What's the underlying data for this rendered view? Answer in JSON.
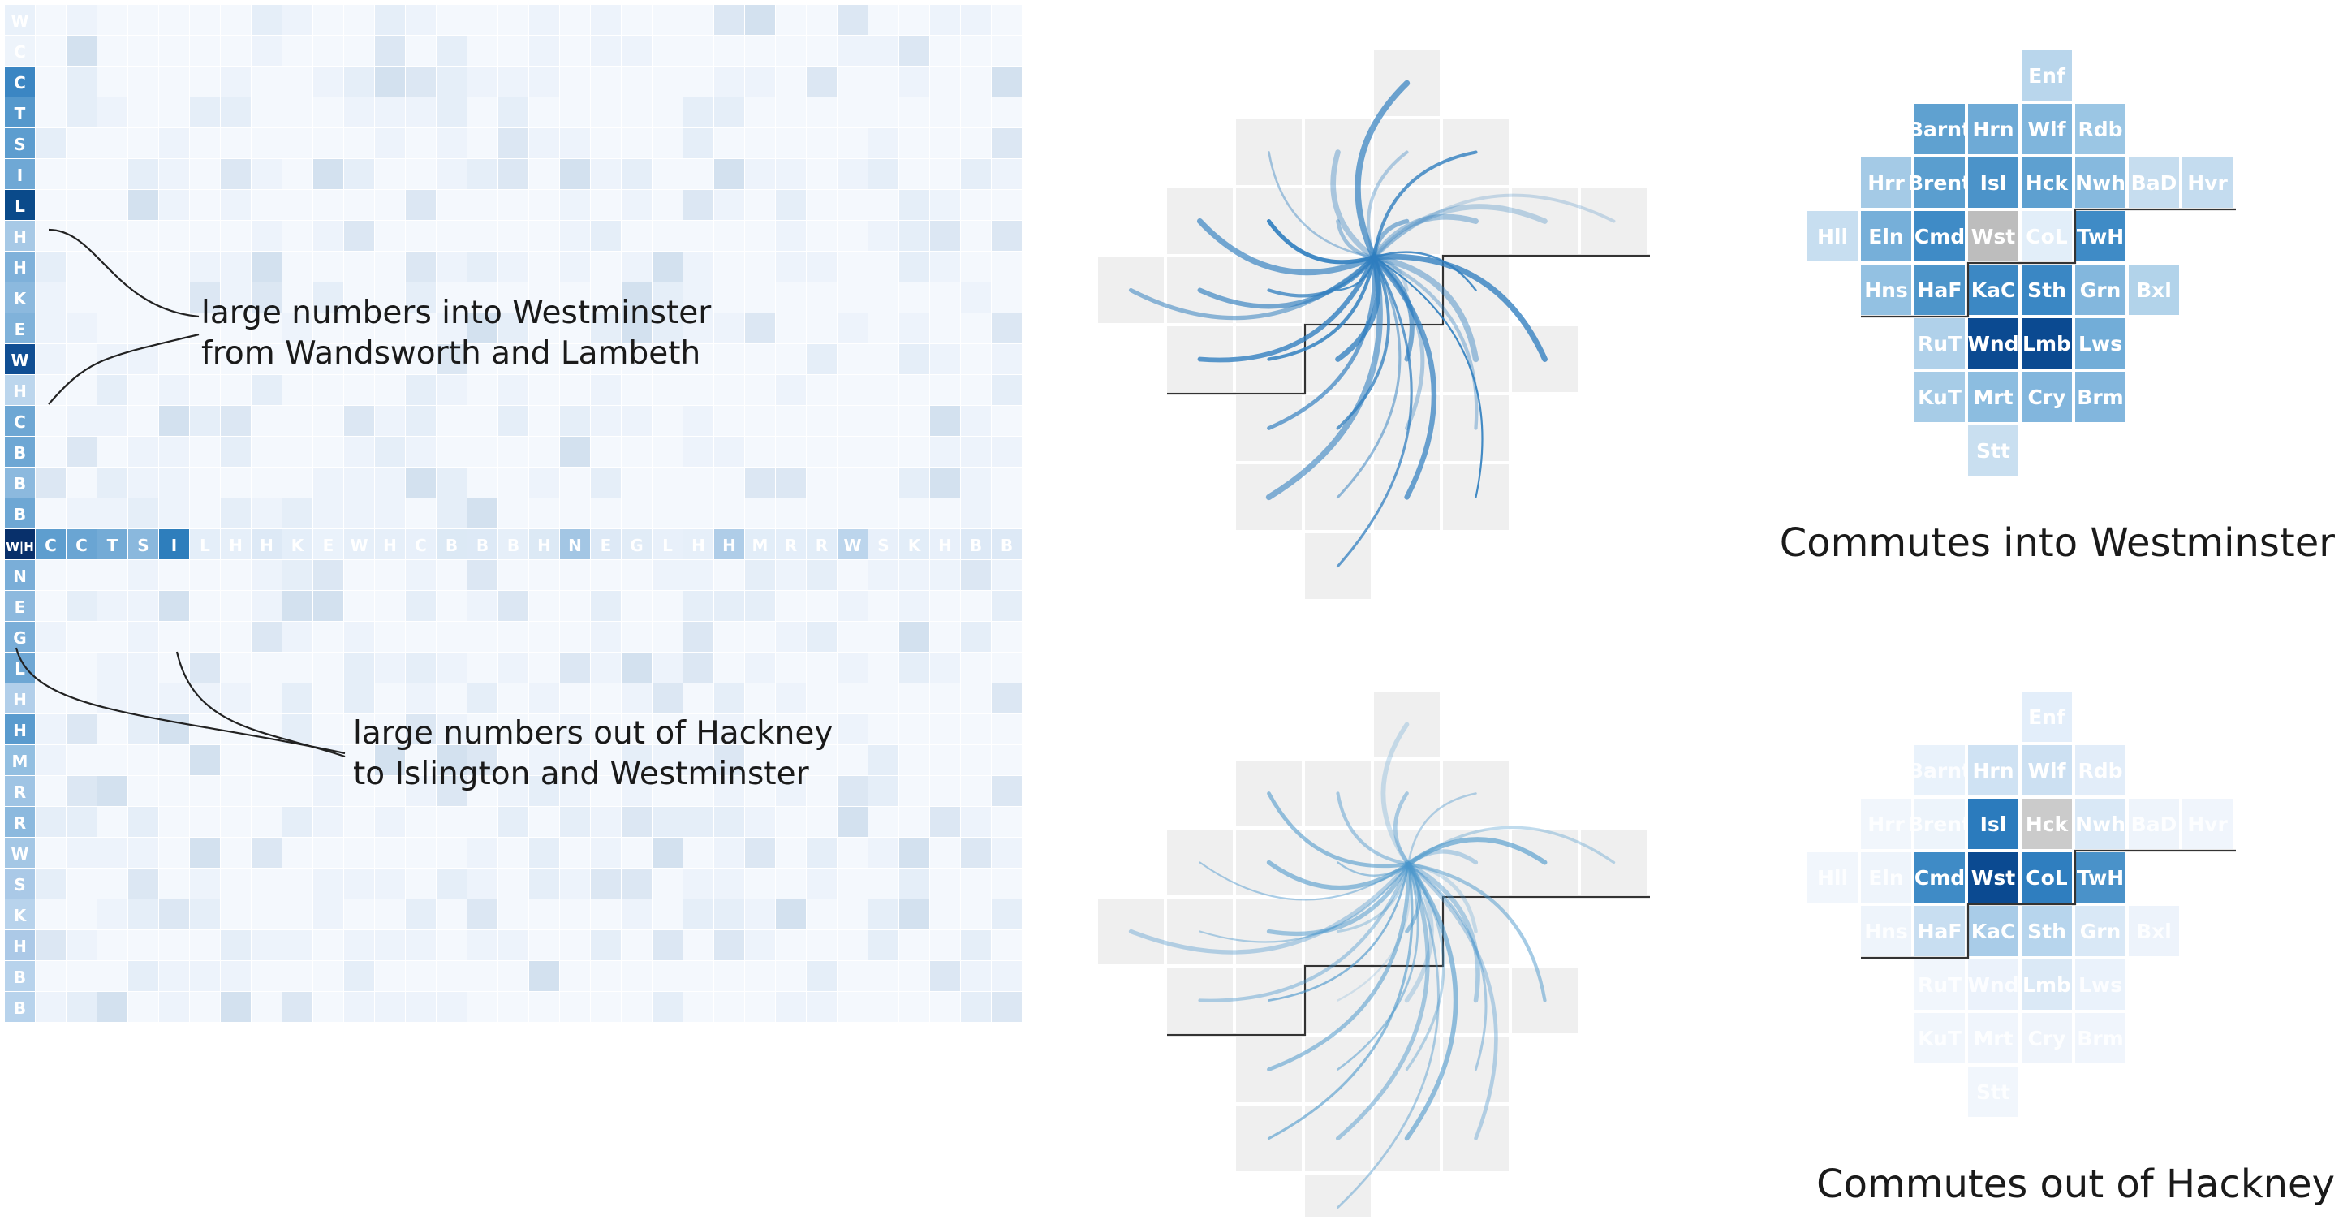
{
  "matrix": {
    "row_labels": [
      "W",
      "C",
      "C",
      "T",
      "S",
      "I",
      "L",
      "H",
      "H",
      "K",
      "E",
      "W",
      "H",
      "C",
      "B",
      "B",
      "B",
      "W|H",
      "N",
      "E",
      "G",
      "L",
      "H",
      "H",
      "M",
      "R",
      "R",
      "W",
      "S",
      "K",
      "H",
      "B",
      "B"
    ],
    "row_colors": [
      "#e9f1fa",
      "#eef4fb",
      "#3b86c3",
      "#5598cc",
      "#5d9dcf",
      "#6fa8d5",
      "#0a4a8a",
      "#a7c9e6",
      "#7fb1da",
      "#8cb9de",
      "#80b2da",
      "#104e93",
      "#bcd6ed",
      "#6ea7d4",
      "#6ea7d4",
      "#8cb9de",
      "#6ea7d4",
      "#08306b",
      "#7aaed8",
      "#8db9de",
      "#7aaed8",
      "#6ea7d4",
      "#b2cfea",
      "#5a9bce",
      "#93bfe1",
      "#9fc4e4",
      "#8cb9de",
      "#a4c7e5",
      "#aac9e7",
      "#b8d3ec",
      "#acc9e7",
      "#b8d3ec",
      "#b8d3ec"
    ],
    "row_highlight_index": 17,
    "column_labels": [
      "C",
      "C",
      "T",
      "S",
      "I",
      "L",
      "H",
      "H",
      "K",
      "E",
      "W",
      "H",
      "C",
      "B",
      "B",
      "B",
      "H",
      "N",
      "E",
      "G",
      "L",
      "H",
      "H",
      "M",
      "R",
      "R",
      "W",
      "S",
      "K",
      "H",
      "B",
      "B"
    ],
    "column_colors": [
      "#5e9ecf",
      "#6aa5d3",
      "#74abd6",
      "#8ab8dd",
      "#2e7ebc",
      "#e4eef9",
      "#e6eff9",
      "#dde9f6",
      "#e4eef9",
      "#eaf2fb",
      "#e6eff9",
      "#e6eff9",
      "#e8f0fa",
      "#dce9f5",
      "#dde9f6",
      "#e6eff9",
      "#dce9f5",
      "#a3c6e4",
      "#dde9f6",
      "#e1ecf7",
      "#e8f0fa",
      "#e6eff9",
      "#afcde8",
      "#e2edf8",
      "#e4eef9",
      "#e2edf8",
      "#bcd5ec",
      "#e8f0fa",
      "#e2edf8",
      "#e8f0fa",
      "#dde9f6",
      "#dde9f6"
    ],
    "cell_colors": [
      "#f4f8fd",
      "#edf3fb",
      "#e5eef8",
      "#dce7f3",
      "#d3e1ef",
      "#c9d8ea"
    ]
  },
  "annotations": [
    {
      "lines": [
        "large numbers into Westminster",
        "from Wandsworth and Lambeth"
      ]
    },
    {
      "lines": [
        "large numbers out of Hackney",
        "to Islington and Westminster"
      ]
    }
  ],
  "maps": [
    {
      "id": "into",
      "caption": "Commutes into Westminster",
      "tiles": [
        {
          "label": "Enf",
          "color": "#b9d6ec",
          "dim": false
        },
        {
          "label": "Barnt",
          "color": "#5fa1d0",
          "dim": false
        },
        {
          "label": "Hrn",
          "color": "#6eaad6",
          "dim": false
        },
        {
          "label": "Wlf",
          "color": "#7fb5dc",
          "dim": false
        },
        {
          "label": "Rdb",
          "color": "#9bc6e4",
          "dim": false
        },
        {
          "label": "Hrr",
          "color": "#a4cae6",
          "dim": false
        },
        {
          "label": "Brent",
          "color": "#5a9ecf",
          "dim": false
        },
        {
          "label": "Isl",
          "color": "#4b93c9",
          "dim": false
        },
        {
          "label": "Hck",
          "color": "#5ea0d0",
          "dim": false
        },
        {
          "label": "Nwh",
          "color": "#86b9de",
          "dim": false
        },
        {
          "label": "BaD",
          "color": "#c6ddef",
          "dim": false
        },
        {
          "label": "Hvr",
          "color": "#c4dcef",
          "dim": false
        },
        {
          "label": "Hll",
          "color": "#c7def0",
          "dim": false
        },
        {
          "label": "Eln",
          "color": "#76afd9",
          "dim": false
        },
        {
          "label": "Cmd",
          "color": "#3f8bc6",
          "dim": false
        },
        {
          "label": "Wst",
          "color": "#bdbdbd",
          "dim": false
        },
        {
          "label": "CoL",
          "color": "#e2eef9",
          "dim": false
        },
        {
          "label": "TwH",
          "color": "#3f8bc6",
          "dim": false
        },
        {
          "label": "Hns",
          "color": "#93c1e2",
          "dim": false
        },
        {
          "label": "HaF",
          "color": "#4d95ca",
          "dim": false
        },
        {
          "label": "KaC",
          "color": "#3c88c4",
          "dim": false
        },
        {
          "label": "Sth",
          "color": "#3a87c4",
          "dim": false
        },
        {
          "label": "Grn",
          "color": "#83b7dd",
          "dim": false
        },
        {
          "label": "Bxl",
          "color": "#b2d3ea",
          "dim": false
        },
        {
          "label": "RuT",
          "color": "#b0d1ea",
          "dim": false
        },
        {
          "label": "Wnd",
          "color": "#0b4a91",
          "dim": false
        },
        {
          "label": "Lmb",
          "color": "#0b4a91",
          "dim": false
        },
        {
          "label": "Lws",
          "color": "#72add8",
          "dim": false
        },
        {
          "label": "KuT",
          "color": "#a7cce7",
          "dim": false
        },
        {
          "label": "Mrt",
          "color": "#8cbde0",
          "dim": false
        },
        {
          "label": "Cry",
          "color": "#82b6dd",
          "dim": false
        },
        {
          "label": "Brm",
          "color": "#82b6dd",
          "dim": false
        },
        {
          "label": "Stt",
          "color": "#c9dff0",
          "dim": false
        }
      ]
    },
    {
      "id": "out",
      "caption": "Commutes out of Hackney",
      "tiles": [
        {
          "label": "Enf",
          "color": "#e3eefa",
          "dim": false
        },
        {
          "label": "Barnt",
          "color": "#e9f2fb",
          "dim": true
        },
        {
          "label": "Hrn",
          "color": "#cfe2f3",
          "dim": false
        },
        {
          "label": "Wlf",
          "color": "#cce0f2",
          "dim": false
        },
        {
          "label": "Rdb",
          "color": "#e2edf9",
          "dim": false
        },
        {
          "label": "Hrr",
          "color": "#f1f6fc",
          "dim": true
        },
        {
          "label": "Brent",
          "color": "#edf4fb",
          "dim": true
        },
        {
          "label": "Isl",
          "color": "#2b7bbd",
          "dim": false
        },
        {
          "label": "Hck",
          "color": "#cbcbcb",
          "dim": false
        },
        {
          "label": "Nwh",
          "color": "#d9e8f6",
          "dim": false
        },
        {
          "label": "BaD",
          "color": "#eef4fb",
          "dim": true
        },
        {
          "label": "Hvr",
          "color": "#f0f5fc",
          "dim": true
        },
        {
          "label": "Hll",
          "color": "#f1f6fc",
          "dim": true
        },
        {
          "label": "Eln",
          "color": "#eef4fb",
          "dim": true
        },
        {
          "label": "Cmd",
          "color": "#3f8bc6",
          "dim": false
        },
        {
          "label": "Wst",
          "color": "#0b4a91",
          "dim": false
        },
        {
          "label": "CoL",
          "color": "#2f7ebf",
          "dim": false
        },
        {
          "label": "TwH",
          "color": "#4a92c9",
          "dim": false
        },
        {
          "label": "Hns",
          "color": "#eef4fb",
          "dim": true
        },
        {
          "label": "HaF",
          "color": "#c8def1",
          "dim": false
        },
        {
          "label": "KaC",
          "color": "#a9cce8",
          "dim": false
        },
        {
          "label": "Sth",
          "color": "#b7d5ed",
          "dim": false
        },
        {
          "label": "Grn",
          "color": "#d9e8f6",
          "dim": false
        },
        {
          "label": "Bxl",
          "color": "#edf3fb",
          "dim": true
        },
        {
          "label": "RuT",
          "color": "#f1f6fc",
          "dim": true
        },
        {
          "label": "Wnd",
          "color": "#ebf2fb",
          "dim": true
        },
        {
          "label": "Lmb",
          "color": "#dbe9f6",
          "dim": false
        },
        {
          "label": "Lws",
          "color": "#eaf2fb",
          "dim": true
        },
        {
          "label": "KuT",
          "color": "#f1f6fc",
          "dim": true
        },
        {
          "label": "Mrt",
          "color": "#f0f5fc",
          "dim": true
        },
        {
          "label": "Cry",
          "color": "#eff4fb",
          "dim": true
        },
        {
          "label": "Brm",
          "color": "#f0f5fc",
          "dim": true
        },
        {
          "label": "Stt",
          "color": "#f1f6fc",
          "dim": true
        }
      ]
    }
  ],
  "flow_maps": [
    {
      "id": "into",
      "tile_color": "#efefef",
      "line_color": "#2f7ebf"
    },
    {
      "id": "out",
      "tile_color": "#efefef",
      "line_color": "#4b97cc"
    }
  ]
}
